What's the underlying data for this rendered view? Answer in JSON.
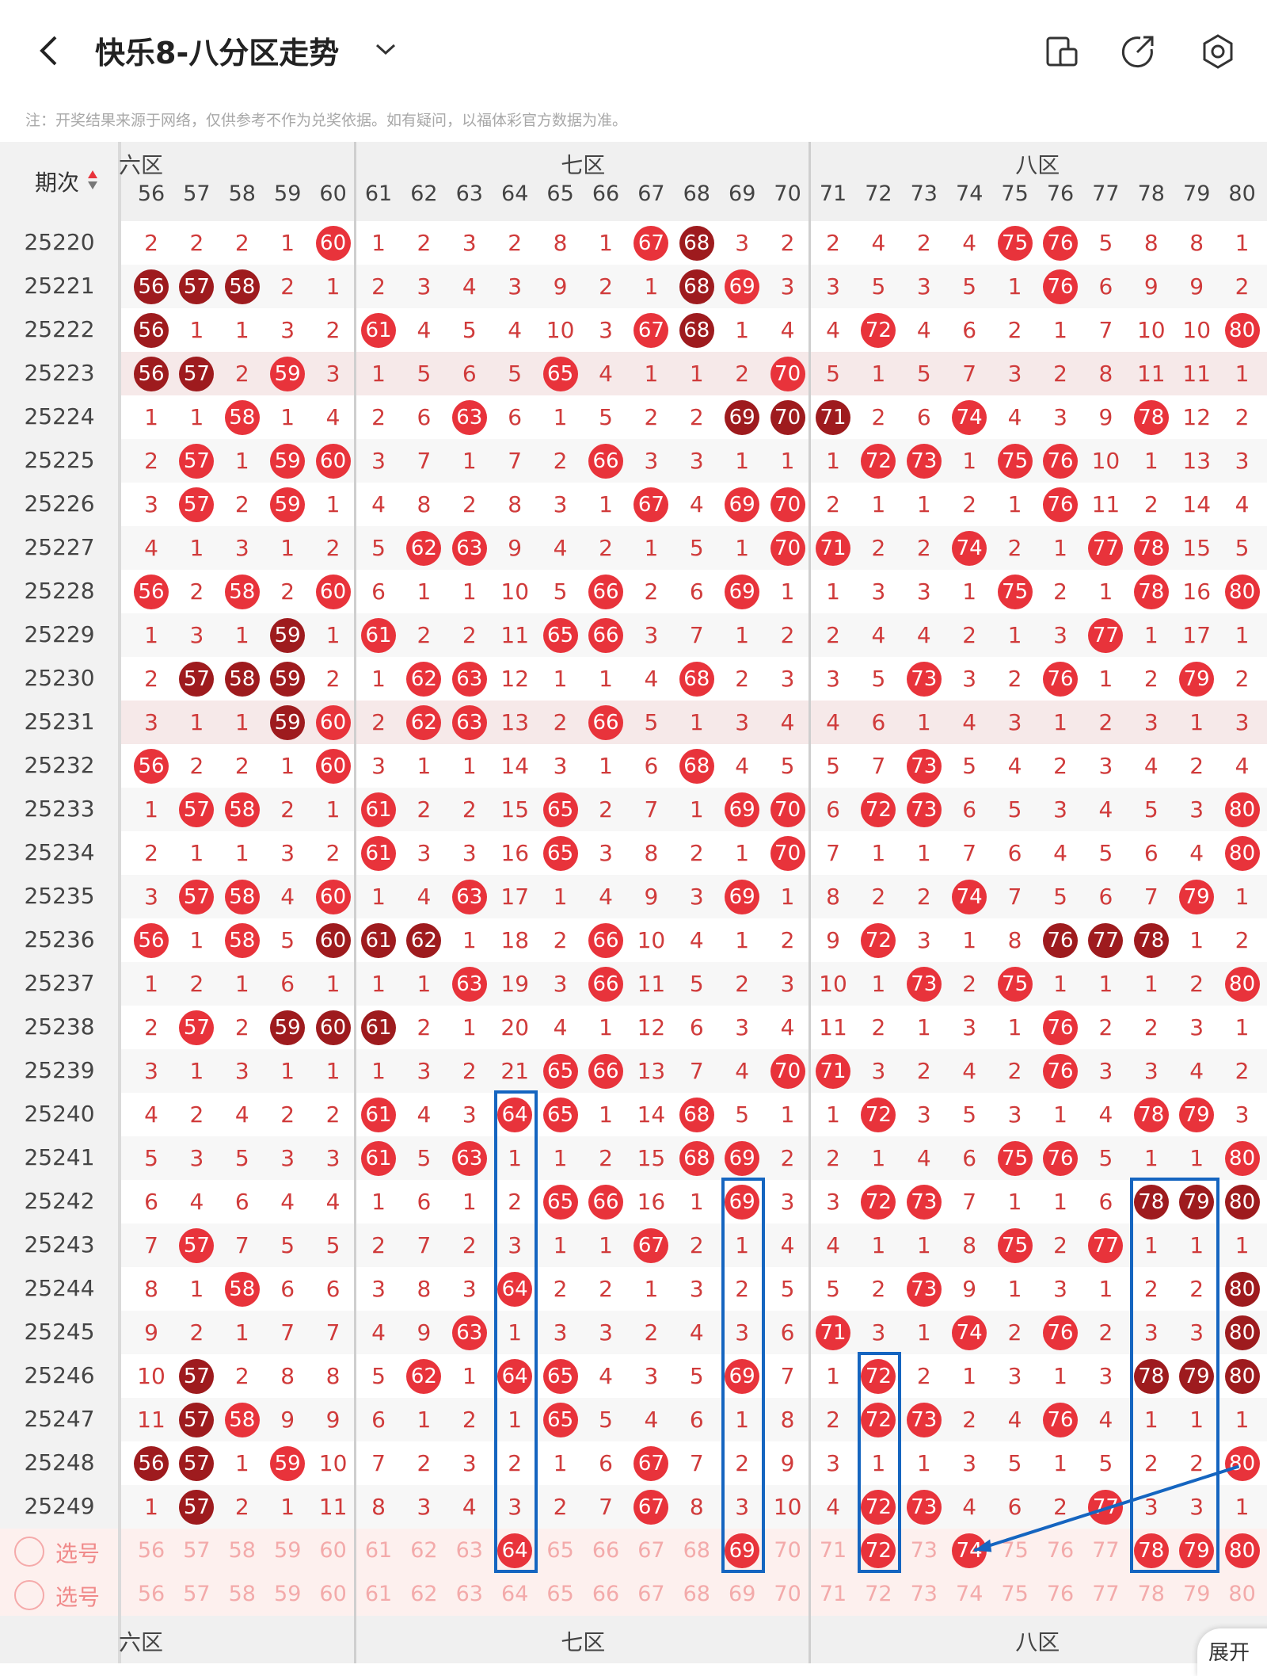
{
  "header": {
    "title": "快乐8-八分区走势",
    "note": "注：开奖结果来源于网络，仅供参考不作为兑奖依据。如有疑问，以福体彩官方数据为准。",
    "icons": [
      "back-icon",
      "chevron-down-icon",
      "device-switch-icon",
      "share-icon",
      "settings-icon"
    ]
  },
  "table": {
    "period_header": "期次",
    "sort_icon": "sort-updown-icon",
    "zones_top": [
      "六区",
      "七区",
      "八区"
    ],
    "zones_bottom": [
      "六区",
      "七区",
      "八区"
    ],
    "columns": [
      "56",
      "57",
      "58",
      "59",
      "60",
      "61",
      "62",
      "63",
      "64",
      "65",
      "66",
      "67",
      "68",
      "69",
      "70",
      "71",
      "72",
      "73",
      "74",
      "75",
      "76",
      "77",
      "78",
      "79",
      "80"
    ],
    "rows": [
      {
        "period": "25220",
        "cells": [
          "2",
          "2",
          "2",
          "1",
          "*60",
          "1",
          "2",
          "3",
          "2",
          "8",
          "1",
          "*67",
          "#68",
          "3",
          "2",
          "2",
          "4",
          "2",
          "4",
          "*75",
          "*76",
          "5",
          "8",
          "8",
          "1"
        ]
      },
      {
        "period": "25221",
        "cells": [
          "#56",
          "#57",
          "#58",
          "2",
          "1",
          "2",
          "3",
          "4",
          "3",
          "9",
          "2",
          "1",
          "#68",
          "*69",
          "3",
          "3",
          "5",
          "3",
          "5",
          "1",
          "*76",
          "6",
          "9",
          "9",
          "2"
        ]
      },
      {
        "period": "25222",
        "cells": [
          "#56",
          "1",
          "1",
          "3",
          "2",
          "*61",
          "4",
          "5",
          "4",
          "10",
          "3",
          "*67",
          "#68",
          "1",
          "4",
          "4",
          "*72",
          "4",
          "6",
          "2",
          "1",
          "7",
          "10",
          "10",
          "*80"
        ]
      },
      {
        "period": "25223",
        "cells": [
          "#56",
          "#57",
          "2",
          "*59",
          "3",
          "1",
          "5",
          "6",
          "5",
          "*65",
          "4",
          "1",
          "1",
          "2",
          "*70",
          "5",
          "1",
          "5",
          "7",
          "3",
          "2",
          "8",
          "11",
          "11",
          "1"
        ]
      },
      {
        "period": "25224",
        "cells": [
          "1",
          "1",
          "*58",
          "1",
          "4",
          "2",
          "6",
          "*63",
          "6",
          "1",
          "5",
          "2",
          "2",
          "#69",
          "#70",
          "#71",
          "2",
          "6",
          "*74",
          "4",
          "3",
          "9",
          "*78",
          "12",
          "2"
        ]
      },
      {
        "period": "25225",
        "cells": [
          "2",
          "*57",
          "1",
          "*59",
          "*60",
          "3",
          "7",
          "1",
          "7",
          "2",
          "*66",
          "3",
          "3",
          "1",
          "1",
          "1",
          "*72",
          "*73",
          "1",
          "*75",
          "*76",
          "10",
          "1",
          "13",
          "3"
        ]
      },
      {
        "period": "25226",
        "cells": [
          "3",
          "*57",
          "2",
          "*59",
          "1",
          "4",
          "8",
          "2",
          "8",
          "3",
          "1",
          "*67",
          "4",
          "*69",
          "*70",
          "2",
          "1",
          "1",
          "2",
          "1",
          "*76",
          "11",
          "2",
          "14",
          "4"
        ]
      },
      {
        "period": "25227",
        "cells": [
          "4",
          "1",
          "3",
          "1",
          "2",
          "5",
          "*62",
          "*63",
          "9",
          "4",
          "2",
          "1",
          "5",
          "1",
          "*70",
          "*71",
          "2",
          "2",
          "*74",
          "2",
          "1",
          "*77",
          "*78",
          "15",
          "5"
        ]
      },
      {
        "period": "25228",
        "cells": [
          "*56",
          "2",
          "*58",
          "2",
          "*60",
          "6",
          "1",
          "1",
          "10",
          "5",
          "*66",
          "2",
          "6",
          "*69",
          "1",
          "1",
          "3",
          "3",
          "1",
          "*75",
          "2",
          "1",
          "*78",
          "16",
          "*80"
        ]
      },
      {
        "period": "25229",
        "cells": [
          "1",
          "3",
          "1",
          "#59",
          "1",
          "*61",
          "2",
          "2",
          "11",
          "*65",
          "*66",
          "3",
          "7",
          "1",
          "2",
          "2",
          "4",
          "4",
          "2",
          "1",
          "3",
          "*77",
          "1",
          "17",
          "1"
        ]
      },
      {
        "period": "25230",
        "cells": [
          "2",
          "#57",
          "#58",
          "#59",
          "2",
          "1",
          "*62",
          "*63",
          "12",
          "1",
          "1",
          "4",
          "*68",
          "2",
          "3",
          "3",
          "5",
          "*73",
          "3",
          "2",
          "*76",
          "1",
          "2",
          "*79",
          "2"
        ]
      },
      {
        "period": "25231",
        "cells": [
          "3",
          "1",
          "1",
          "#59",
          "*60",
          "2",
          "*62",
          "*63",
          "13",
          "2",
          "*66",
          "5",
          "1",
          "3",
          "4",
          "4",
          "6",
          "1",
          "4",
          "3",
          "1",
          "2",
          "3",
          "1",
          "3"
        ]
      },
      {
        "period": "25232",
        "cells": [
          "*56",
          "2",
          "2",
          "1",
          "*60",
          "3",
          "1",
          "1",
          "14",
          "3",
          "1",
          "6",
          "*68",
          "4",
          "5",
          "5",
          "7",
          "*73",
          "5",
          "4",
          "2",
          "3",
          "4",
          "2",
          "4"
        ]
      },
      {
        "period": "25233",
        "cells": [
          "1",
          "*57",
          "*58",
          "2",
          "1",
          "*61",
          "2",
          "2",
          "15",
          "*65",
          "2",
          "7",
          "1",
          "*69",
          "*70",
          "6",
          "*72",
          "*73",
          "6",
          "5",
          "3",
          "4",
          "5",
          "3",
          "*80"
        ]
      },
      {
        "period": "25234",
        "cells": [
          "2",
          "1",
          "1",
          "3",
          "2",
          "*61",
          "3",
          "3",
          "16",
          "*65",
          "3",
          "8",
          "2",
          "1",
          "*70",
          "7",
          "1",
          "1",
          "7",
          "6",
          "4",
          "5",
          "6",
          "4",
          "*80"
        ]
      },
      {
        "period": "25235",
        "cells": [
          "3",
          "*57",
          "*58",
          "4",
          "*60",
          "1",
          "4",
          "*63",
          "17",
          "1",
          "4",
          "9",
          "3",
          "*69",
          "1",
          "8",
          "2",
          "2",
          "*74",
          "7",
          "5",
          "6",
          "7",
          "*79",
          "1"
        ]
      },
      {
        "period": "25236",
        "cells": [
          "*56",
          "1",
          "*58",
          "5",
          "#60",
          "#61",
          "#62",
          "1",
          "18",
          "2",
          "*66",
          "10",
          "4",
          "1",
          "2",
          "9",
          "*72",
          "3",
          "1",
          "8",
          "#76",
          "#77",
          "#78",
          "1",
          "2"
        ]
      },
      {
        "period": "25237",
        "cells": [
          "1",
          "2",
          "1",
          "6",
          "1",
          "1",
          "1",
          "*63",
          "19",
          "3",
          "*66",
          "11",
          "5",
          "2",
          "3",
          "10",
          "1",
          "*73",
          "2",
          "*75",
          "1",
          "1",
          "1",
          "2",
          "*80"
        ]
      },
      {
        "period": "25238",
        "cells": [
          "2",
          "*57",
          "2",
          "#59",
          "#60",
          "#61",
          "2",
          "1",
          "20",
          "4",
          "1",
          "12",
          "6",
          "3",
          "4",
          "11",
          "2",
          "1",
          "3",
          "1",
          "*76",
          "2",
          "2",
          "3",
          "1"
        ]
      },
      {
        "period": "25239",
        "cells": [
          "3",
          "1",
          "3",
          "1",
          "1",
          "1",
          "3",
          "2",
          "21",
          "*65",
          "*66",
          "13",
          "7",
          "4",
          "*70",
          "*71",
          "3",
          "2",
          "4",
          "2",
          "*76",
          "3",
          "3",
          "4",
          "2"
        ]
      },
      {
        "period": "25240",
        "cells": [
          "4",
          "2",
          "4",
          "2",
          "2",
          "*61",
          "4",
          "3",
          "*64",
          "*65",
          "1",
          "14",
          "*68",
          "5",
          "1",
          "1",
          "*72",
          "3",
          "5",
          "3",
          "1",
          "4",
          "*78",
          "*79",
          "3"
        ]
      },
      {
        "period": "25241",
        "cells": [
          "5",
          "3",
          "5",
          "3",
          "3",
          "*61",
          "5",
          "*63",
          "1",
          "1",
          "2",
          "15",
          "*68",
          "*69",
          "2",
          "2",
          "1",
          "4",
          "6",
          "*75",
          "*76",
          "5",
          "1",
          "1",
          "*80"
        ]
      },
      {
        "period": "25242",
        "cells": [
          "6",
          "4",
          "6",
          "4",
          "4",
          "1",
          "6",
          "1",
          "2",
          "*65",
          "*66",
          "16",
          "1",
          "*69",
          "3",
          "3",
          "*72",
          "*73",
          "7",
          "1",
          "1",
          "6",
          "#78",
          "#79",
          "#80"
        ]
      },
      {
        "period": "25243",
        "cells": [
          "7",
          "*57",
          "7",
          "5",
          "5",
          "2",
          "7",
          "2",
          "3",
          "1",
          "1",
          "*67",
          "2",
          "1",
          "4",
          "4",
          "1",
          "1",
          "8",
          "*75",
          "2",
          "*77",
          "1",
          "1",
          "1"
        ]
      },
      {
        "period": "25244",
        "cells": [
          "8",
          "1",
          "*58",
          "6",
          "6",
          "3",
          "8",
          "3",
          "*64",
          "2",
          "2",
          "1",
          "3",
          "2",
          "5",
          "5",
          "2",
          "*73",
          "9",
          "1",
          "3",
          "1",
          "2",
          "2",
          "#80"
        ]
      },
      {
        "period": "25245",
        "cells": [
          "9",
          "2",
          "1",
          "7",
          "7",
          "4",
          "9",
          "*63",
          "1",
          "3",
          "3",
          "2",
          "4",
          "3",
          "6",
          "*71",
          "3",
          "1",
          "*74",
          "2",
          "*76",
          "2",
          "3",
          "3",
          "#80"
        ]
      },
      {
        "period": "25246",
        "cells": [
          "10",
          "#57",
          "2",
          "8",
          "8",
          "5",
          "*62",
          "1",
          "*64",
          "*65",
          "4",
          "3",
          "5",
          "*69",
          "7",
          "1",
          "*72",
          "2",
          "1",
          "3",
          "1",
          "3",
          "#78",
          "#79",
          "#80"
        ]
      },
      {
        "period": "25247",
        "cells": [
          "11",
          "#57",
          "*58",
          "9",
          "9",
          "6",
          "1",
          "2",
          "1",
          "*65",
          "5",
          "4",
          "6",
          "1",
          "8",
          "2",
          "*72",
          "*73",
          "2",
          "4",
          "*76",
          "4",
          "1",
          "1",
          "1"
        ]
      },
      {
        "period": "25248",
        "cells": [
          "#56",
          "#57",
          "1",
          "*59",
          "10",
          "7",
          "2",
          "3",
          "2",
          "1",
          "6",
          "*67",
          "7",
          "2",
          "9",
          "3",
          "1",
          "1",
          "3",
          "5",
          "1",
          "5",
          "2",
          "2",
          "*80"
        ]
      },
      {
        "period": "25249",
        "cells": [
          "1",
          "#57",
          "2",
          "1",
          "11",
          "8",
          "3",
          "4",
          "3",
          "2",
          "7",
          "*67",
          "8",
          "3",
          "10",
          "4",
          "*72",
          "*73",
          "4",
          "6",
          "2",
          "*77",
          "3",
          "3",
          "1"
        ]
      }
    ],
    "select_rows": [
      {
        "label": "选号",
        "picked": [
          "64",
          "69",
          "72",
          "74",
          "78",
          "79",
          "80"
        ]
      },
      {
        "label": "选号",
        "picked": []
      }
    ],
    "expand_label": "展开"
  },
  "colors": {
    "red": "#e8333b",
    "dark_red": "#9e1b1e",
    "highlight_blue": "#1565c0"
  }
}
